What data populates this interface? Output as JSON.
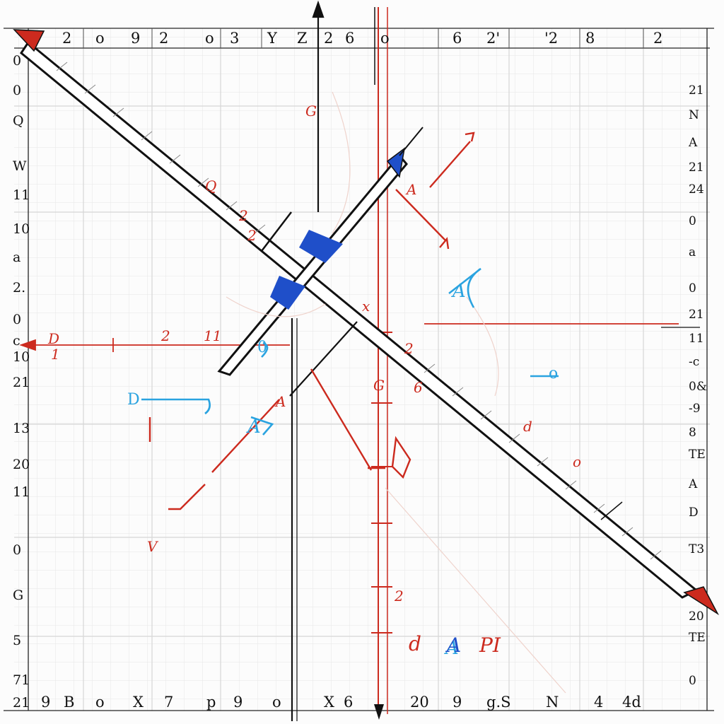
{
  "colors": {
    "paper": "#fbfbfb",
    "grid": "#dcdcdc",
    "ink": "#111111",
    "red": "#cc2a1e",
    "blue": "#1f4fc9",
    "cyan": "#2aa3e0",
    "faint": "#e9c9c2"
  },
  "top_labels": [
    "2",
    "o",
    "9",
    "2",
    "o",
    "3",
    "Y",
    "Z",
    "2",
    "6",
    "o",
    "6",
    "2'",
    "'2",
    "8",
    "2"
  ],
  "left_labels": [
    "0",
    "0",
    "Q",
    "W",
    "11",
    "10",
    "a",
    "2.",
    "0",
    "c",
    "10",
    "21",
    "13",
    "20",
    "11",
    "0",
    "G",
    "5",
    "71",
    "21"
  ],
  "right_labels": [
    "21",
    "N",
    "A",
    "21",
    "24",
    "0",
    "a",
    "0",
    "21",
    "11",
    "-c",
    "0&",
    "-9",
    "8",
    "TE",
    "A",
    "D",
    "T3",
    "20",
    "TE",
    "0"
  ],
  "bottom_labels": [
    "9",
    "B",
    "o",
    "X",
    "7",
    "p",
    "9",
    "o",
    "X",
    "6",
    "20",
    "9",
    "g.S",
    "N",
    "4",
    "4d"
  ],
  "annotations": {
    "red_marks": [
      "D",
      "1",
      "2",
      "11",
      "G",
      "A",
      "Q",
      "2",
      "x",
      "2",
      "6",
      "G",
      "2",
      "A",
      "V",
      "2",
      "d",
      "o"
    ],
    "blue_marks": [
      "A",
      "A",
      "A"
    ],
    "cyan_marks": [
      "o",
      "D",
      "0"
    ],
    "bottom_word": [
      "d",
      "A",
      "PI"
    ]
  }
}
